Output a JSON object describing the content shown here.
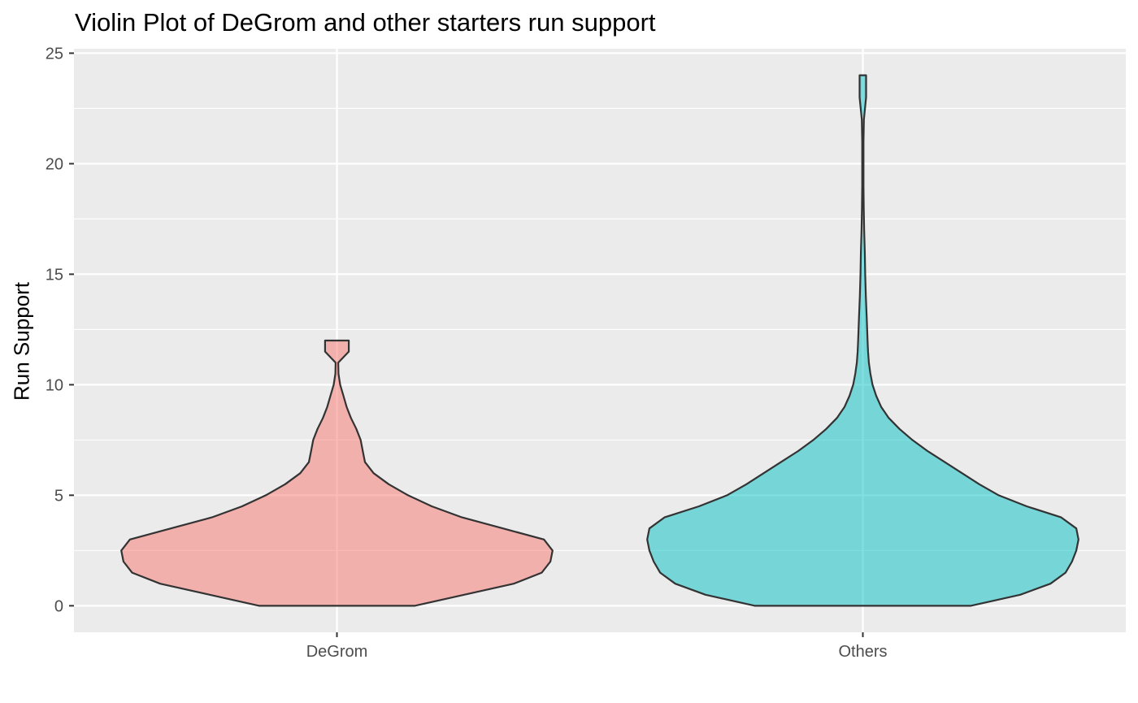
{
  "chart_data": {
    "type": "violin",
    "title": "Violin Plot of DeGrom and other starters run support",
    "xlabel": "",
    "ylabel": "Run Support",
    "ylim": [
      -1.2,
      25.2
    ],
    "yticks": [
      0,
      5,
      10,
      15,
      20,
      25
    ],
    "grid": true,
    "legend": "none",
    "categories": [
      "DeGrom",
      "Others"
    ],
    "series": [
      {
        "category": "DeGrom",
        "color": "#F8766D",
        "density_profile": [
          [
            0,
            0.36
          ],
          [
            0.5,
            0.59
          ],
          [
            1,
            0.82
          ],
          [
            1.5,
            0.95
          ],
          [
            2,
            0.99
          ],
          [
            2.5,
            1.0
          ],
          [
            3,
            0.96
          ],
          [
            3.5,
            0.77
          ],
          [
            4,
            0.58
          ],
          [
            4.5,
            0.44
          ],
          [
            5,
            0.33
          ],
          [
            5.5,
            0.24
          ],
          [
            6,
            0.17
          ],
          [
            6.5,
            0.13
          ],
          [
            7,
            0.12
          ],
          [
            7.5,
            0.11
          ],
          [
            8,
            0.09
          ],
          [
            8.5,
            0.065
          ],
          [
            9,
            0.045
          ],
          [
            9.5,
            0.03
          ],
          [
            10,
            0.015
          ],
          [
            10.5,
            0.007
          ],
          [
            11,
            0.006
          ],
          [
            11.5,
            0.055
          ],
          [
            12,
            0.055
          ]
        ]
      },
      {
        "category": "Others",
        "color": "#00BFC4",
        "density_profile": [
          [
            0,
            0.5
          ],
          [
            0.5,
            0.73
          ],
          [
            1,
            0.87
          ],
          [
            1.5,
            0.94
          ],
          [
            2,
            0.97
          ],
          [
            2.5,
            0.99
          ],
          [
            3,
            1.0
          ],
          [
            3.5,
            0.99
          ],
          [
            4,
            0.92
          ],
          [
            4.5,
            0.76
          ],
          [
            5,
            0.63
          ],
          [
            5.5,
            0.54
          ],
          [
            6,
            0.46
          ],
          [
            6.5,
            0.38
          ],
          [
            7,
            0.3
          ],
          [
            7.5,
            0.23
          ],
          [
            8,
            0.17
          ],
          [
            8.5,
            0.12
          ],
          [
            9,
            0.085
          ],
          [
            9.5,
            0.062
          ],
          [
            10,
            0.045
          ],
          [
            10.5,
            0.035
          ],
          [
            11,
            0.028
          ],
          [
            11.5,
            0.024
          ],
          [
            12,
            0.022
          ],
          [
            13,
            0.018
          ],
          [
            14,
            0.014
          ],
          [
            15,
            0.011
          ],
          [
            16,
            0.009
          ],
          [
            17,
            0.006
          ],
          [
            18,
            0.004
          ],
          [
            19,
            0.003
          ],
          [
            20,
            0.003
          ],
          [
            21,
            0.003
          ],
          [
            22,
            0.005
          ],
          [
            23,
            0.015
          ],
          [
            24,
            0.015
          ]
        ]
      }
    ]
  }
}
